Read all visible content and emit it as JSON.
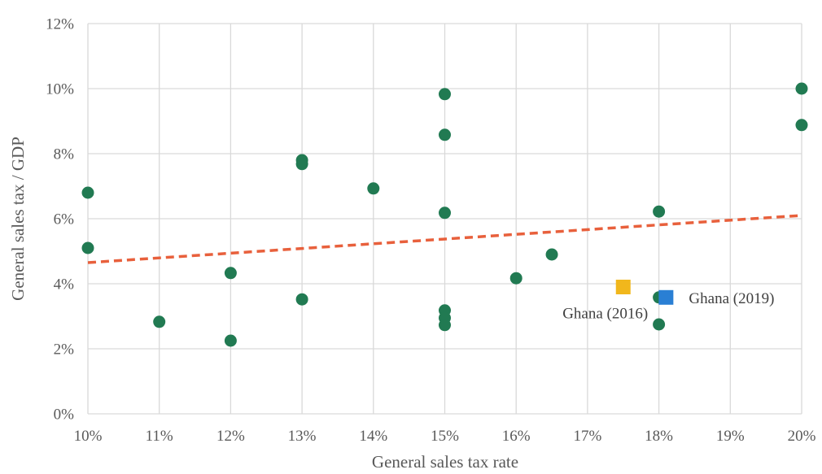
{
  "chart_data": {
    "type": "scatter",
    "xlabel": "General sales tax rate",
    "ylabel": "General sales tax / GDP",
    "xlim": [
      0.1,
      0.2
    ],
    "ylim": [
      0,
      0.12
    ],
    "x_ticks": [
      0.1,
      0.11,
      0.12,
      0.13,
      0.14,
      0.15,
      0.16,
      0.17,
      0.18,
      0.19,
      0.2
    ],
    "x_tick_labels": [
      "10%",
      "11%",
      "12%",
      "13%",
      "14%",
      "15%",
      "16%",
      "17%",
      "18%",
      "19%",
      "20%"
    ],
    "y_ticks": [
      0,
      0.02,
      0.04,
      0.06,
      0.08,
      0.1,
      0.12
    ],
    "y_tick_labels": [
      "0%",
      "2%",
      "4%",
      "6%",
      "8%",
      "10%",
      "12%"
    ],
    "grid": true,
    "series": [
      {
        "marker": "circle",
        "color": "#217a52",
        "points": [
          [
            0.1,
            0.068
          ],
          [
            0.1,
            0.051
          ],
          [
            0.11,
            0.0283
          ],
          [
            0.12,
            0.0433
          ],
          [
            0.12,
            0.0225
          ],
          [
            0.13,
            0.078
          ],
          [
            0.13,
            0.0768
          ],
          [
            0.13,
            0.0352
          ],
          [
            0.14,
            0.0693
          ],
          [
            0.15,
            0.0983
          ],
          [
            0.15,
            0.0858
          ],
          [
            0.15,
            0.0618
          ],
          [
            0.15,
            0.0318
          ],
          [
            0.15,
            0.0295
          ],
          [
            0.15,
            0.0273
          ],
          [
            0.16,
            0.0417
          ],
          [
            0.165,
            0.049
          ],
          [
            0.18,
            0.0622
          ],
          [
            0.18,
            0.0358
          ],
          [
            0.18,
            0.0275
          ],
          [
            0.2,
            0.1
          ],
          [
            0.2,
            0.0888
          ]
        ]
      },
      {
        "name": "Ghana (2016)",
        "marker": "square",
        "color": "#f1b71c",
        "points": [
          [
            0.175,
            0.039
          ]
        ]
      },
      {
        "name": "Ghana (2019)",
        "marker": "square",
        "color": "#2a7fd4",
        "points": [
          [
            0.181,
            0.0358
          ]
        ]
      }
    ],
    "trendline": {
      "style": "dashed",
      "color": "#e8603c",
      "points": [
        [
          0.1,
          0.0465
        ],
        [
          0.2,
          0.061
        ]
      ]
    },
    "annotations": [
      {
        "text": "Ghana (2016)",
        "x": 0.1665,
        "y": 0.031
      },
      {
        "text": "Ghana (2019)",
        "x": 0.1842,
        "y": 0.0356
      }
    ]
  }
}
